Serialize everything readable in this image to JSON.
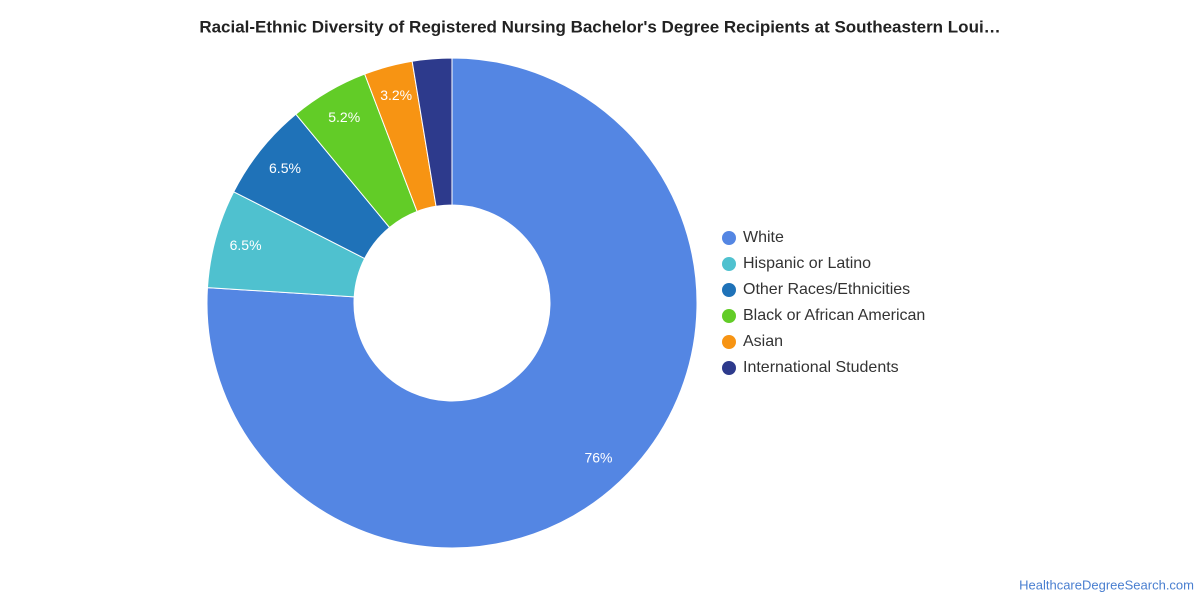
{
  "chart_data": {
    "type": "donut",
    "title": "Racial-Ethnic Diversity of Registered Nursing Bachelor's Degree Recipients at Southeastern Loui…",
    "categories": [
      "White",
      "Hispanic or Latino",
      "Other Races/Ethnicities",
      "Black or African American",
      "Asian",
      "International Students"
    ],
    "values": [
      76,
      6.5,
      6.5,
      5.2,
      3.2,
      2.6
    ],
    "value_labels": [
      "76%",
      "6.5%",
      "6.5%",
      "5.2%",
      "3.2%",
      null
    ],
    "colors": [
      "#5486e3",
      "#4fc1cf",
      "#1f72b8",
      "#62cc27",
      "#f79413",
      "#2d3a8c"
    ],
    "legend": "right",
    "source": "HealthcareDegreeSearch.com"
  }
}
